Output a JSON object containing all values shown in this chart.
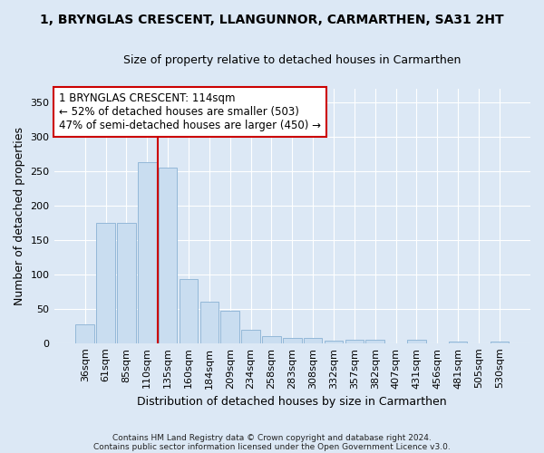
{
  "title": "1, BRYNGLAS CRESCENT, LLANGUNNOR, CARMARTHEN, SA31 2HT",
  "subtitle": "Size of property relative to detached houses in Carmarthen",
  "xlabel": "Distribution of detached houses by size in Carmarthen",
  "ylabel": "Number of detached properties",
  "bar_labels": [
    "36sqm",
    "61sqm",
    "85sqm",
    "110sqm",
    "135sqm",
    "160sqm",
    "184sqm",
    "209sqm",
    "234sqm",
    "258sqm",
    "283sqm",
    "308sqm",
    "332sqm",
    "357sqm",
    "382sqm",
    "407sqm",
    "431sqm",
    "456sqm",
    "481sqm",
    "505sqm",
    "530sqm"
  ],
  "bar_values": [
    27,
    175,
    175,
    263,
    255,
    93,
    60,
    47,
    19,
    10,
    8,
    8,
    4,
    5,
    5,
    0,
    5,
    0,
    2,
    0,
    3
  ],
  "bar_color": "#c9ddf0",
  "bar_edge_color": "#94b8d8",
  "vline_x": 3.5,
  "vline_color": "#cc0000",
  "annotation_title": "1 BRYNGLAS CRESCENT: 114sqm",
  "annotation_line1": "← 52% of detached houses are smaller (503)",
  "annotation_line2": "47% of semi-detached houses are larger (450) →",
  "annotation_box_facecolor": "#ffffff",
  "annotation_box_edgecolor": "#cc0000",
  "ylim": [
    0,
    370
  ],
  "yticks": [
    0,
    50,
    100,
    150,
    200,
    250,
    300,
    350
  ],
  "footnote1": "Contains HM Land Registry data © Crown copyright and database right 2024.",
  "footnote2": "Contains public sector information licensed under the Open Government Licence v3.0.",
  "fig_bg_color": "#dce8f5",
  "plot_bg_color": "#dce8f5",
  "grid_color": "#ffffff",
  "title_fontsize": 10,
  "subtitle_fontsize": 9,
  "tick_fontsize": 8,
  "ylabel_fontsize": 9,
  "xlabel_fontsize": 9,
  "footnote_fontsize": 6.5,
  "annotation_fontsize": 8.5
}
